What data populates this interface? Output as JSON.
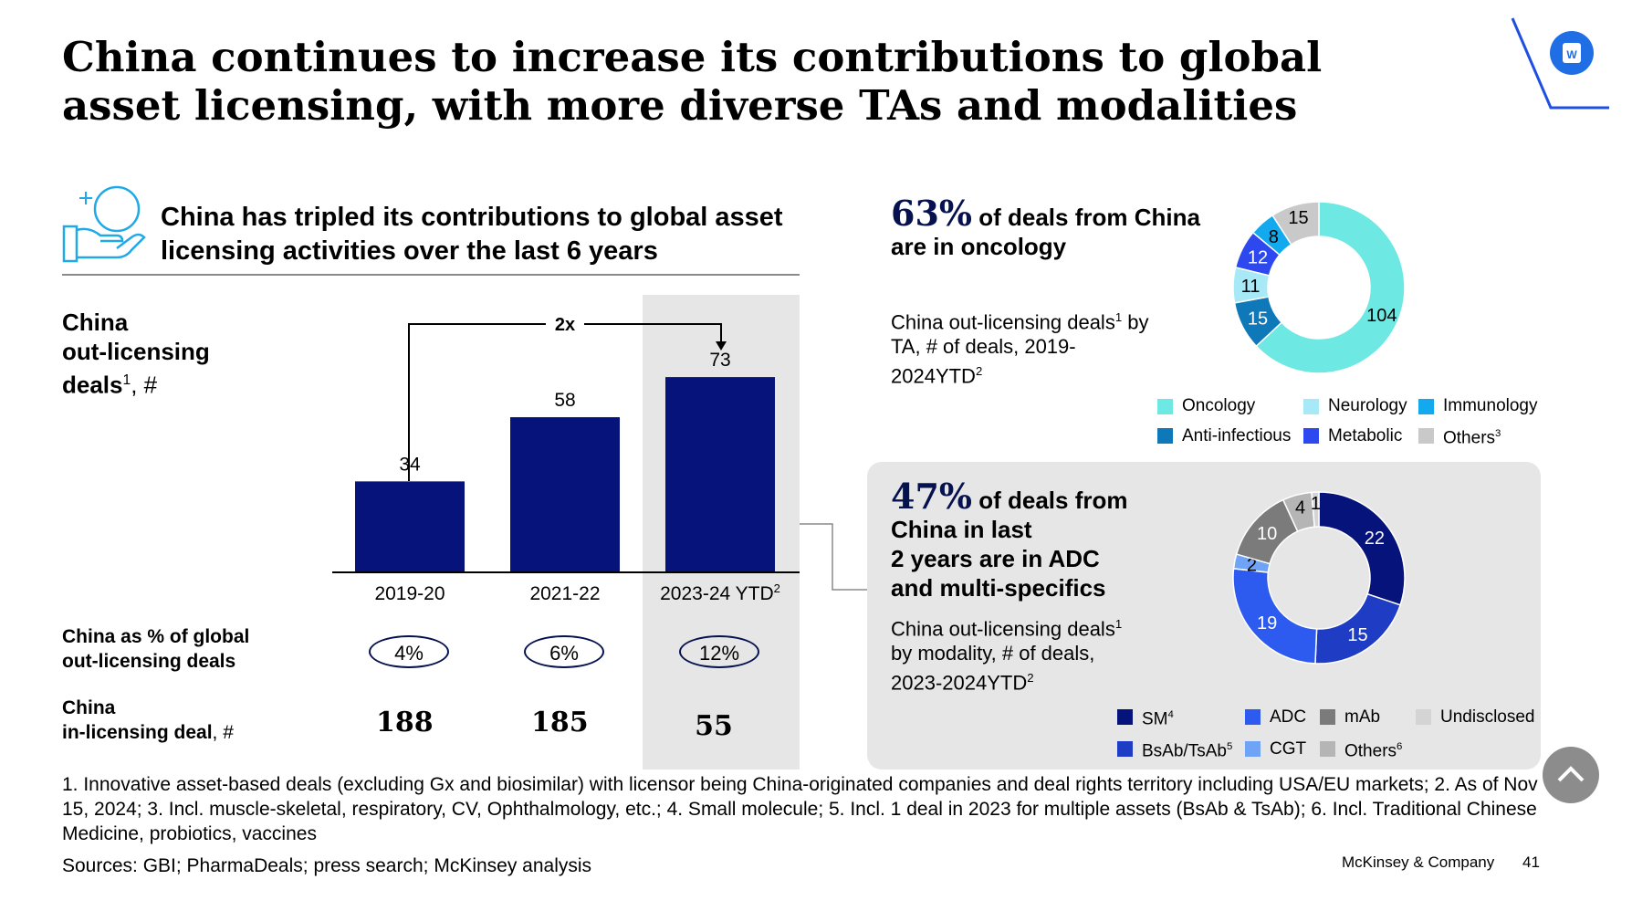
{
  "title": "China continues to increase its contributions to global asset licensing, with more diverse TAs and modalities",
  "subheading": "China has tripled its contributions to global asset licensing activities over the last 6 years",
  "bar_chart": {
    "label_line1": "China",
    "label_line2": "out-licensing",
    "label_line3": "deals",
    "label_sup": "1",
    "label_unit": ", #",
    "growth_label": "2x",
    "categories_main": [
      "2019-20",
      "2021-22",
      "2023-24 YTD"
    ],
    "last_category_sup": "2",
    "bar_color": "#06137a"
  },
  "share_row": {
    "label_line1": "China as % of global",
    "label_line2": "out-licensing deals",
    "values": [
      "4%",
      "6%",
      "12%"
    ]
  },
  "inlicensing_row": {
    "label_line1": "China",
    "label_line2": "in-licensing deal",
    "label_unit": ", #",
    "values": [
      "188",
      "185",
      "55"
    ]
  },
  "donut_ta": {
    "pct": "63%",
    "head_rest": "of deals from China",
    "head_line2": "are in oncology",
    "sub_line1_a": "China out-licensing deals",
    "sub_line1_sup": "1",
    "sub_line1_b": " by",
    "sub_line2": "TA, # of deals, 2019-",
    "sub_line3": "2024YTD",
    "sub_line3_sup": "2",
    "legend": [
      {
        "label": "Oncology",
        "sup": "",
        "color": "#6ee8e2"
      },
      {
        "label": "Neurology",
        "sup": "",
        "color": "#a8e9f7"
      },
      {
        "label": "Immunology",
        "sup": "",
        "color": "#13a9ee"
      },
      {
        "label": "Anti-infectious",
        "sup": "",
        "color": "#0f78b8"
      },
      {
        "label": "Metabolic",
        "sup": "",
        "color": "#2d48ee"
      },
      {
        "label": "Others",
        "sup": "3",
        "color": "#c9c9c9"
      }
    ]
  },
  "donut_mod": {
    "pct": "47%",
    "head_rest": "of deals from",
    "head_line2": "China in last",
    "head_line3": "2 years are in ADC",
    "head_line4": "and multi-specifics",
    "sub_line1_a": "China out-licensing deals",
    "sub_line1_sup": "1",
    "sub_line2": "by modality, # of deals,",
    "sub_line3": "2023-2024YTD",
    "sub_line3_sup": "2",
    "legend": [
      {
        "label": "SM",
        "sup": "4",
        "color": "#06137a"
      },
      {
        "label": "ADC",
        "sup": "",
        "color": "#2d5bf0"
      },
      {
        "label": "mAb",
        "sup": "",
        "color": "#7b7b7b"
      },
      {
        "label": "Undisclosed",
        "sup": "",
        "color": "#d4d4d4"
      },
      {
        "label": "BsAb/TsAb",
        "sup": "5",
        "color": "#1f3cc4"
      },
      {
        "label": "CGT",
        "sup": "",
        "color": "#6fa3f5"
      },
      {
        "label": "Others",
        "sup": "6",
        "color": "#b5b5b5"
      }
    ]
  },
  "chart_data": [
    {
      "type": "bar",
      "categories": [
        "2019-20",
        "2021-22",
        "2023-24 YTD"
      ],
      "values": [
        34,
        58,
        73
      ],
      "ylim": [
        0,
        80
      ]
    },
    {
      "type": "pie",
      "title": "China out-licensing deals by TA, # of deals, 2019-2024YTD",
      "slices": [
        {
          "label": "Oncology",
          "value": 104,
          "color": "#6ee8e2"
        },
        {
          "label": "Anti-infectious",
          "value": 15,
          "color": "#0f78b8"
        },
        {
          "label": "Neurology",
          "value": 11,
          "color": "#a8e9f7"
        },
        {
          "label": "Metabolic",
          "value": 12,
          "color": "#2d48ee"
        },
        {
          "label": "Immunology",
          "value": 8,
          "color": "#13a9ee"
        },
        {
          "label": "Others",
          "value": 15,
          "color": "#c9c9c9"
        }
      ]
    },
    {
      "type": "pie",
      "title": "China out-licensing deals by modality, # of deals, 2023-2024YTD",
      "slices": [
        {
          "label": "SM",
          "value": 22,
          "color": "#06137a"
        },
        {
          "label": "BsAb/TsAb",
          "value": 15,
          "color": "#1f3cc4"
        },
        {
          "label": "ADC",
          "value": 19,
          "color": "#2d5bf0"
        },
        {
          "label": "CGT",
          "value": 2,
          "color": "#6fa3f5"
        },
        {
          "label": "mAb",
          "value": 10,
          "color": "#7b7b7b"
        },
        {
          "label": "Others",
          "value": 4,
          "color": "#b5b5b5"
        },
        {
          "label": "Undisclosed",
          "value": 1,
          "color": "#d4d4d4"
        }
      ]
    }
  ],
  "footnote": "1. Innovative asset-based deals (excluding Gx and biosimilar) with licensor being China-originated companies and deal rights territory including USA/EU markets; 2. As of Nov 15, 2024; 3. Incl. muscle-skeletal, respiratory, CV, Ophthalmology, etc.; 4. Small molecule; 5. Incl. 1 deal in 2023 for multiple assets (BsAb & TsAb); 6. Incl. Traditional Chinese Medicine, probiotics, vaccines",
  "sources": "Sources: GBI; PharmaDeals; press search; McKinsey analysis",
  "brand": "McKinsey & Company",
  "page_number": "41",
  "badge_letter": "W",
  "icons": [
    "hand-with-circle-icon",
    "corner-badge-icon",
    "chevron-up-icon"
  ]
}
